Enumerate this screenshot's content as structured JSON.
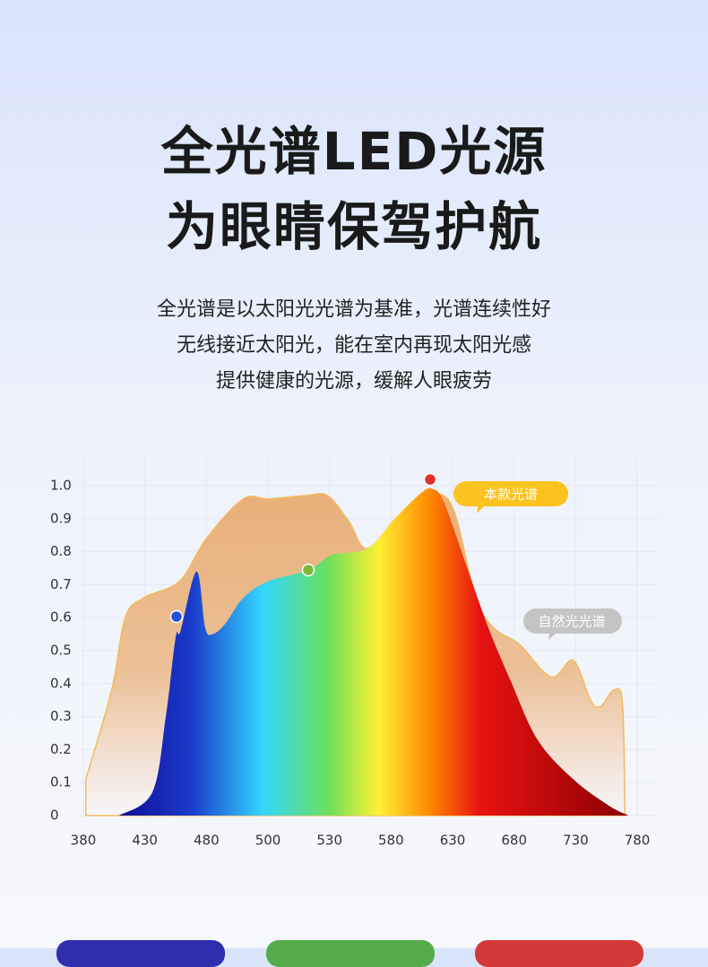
{
  "header": {
    "title": [
      "全光谱LED光源",
      "为眼睛保驾护航"
    ],
    "description": [
      "全光谱是以太阳光光谱为基准，光谱连续性好",
      "无线接近太阳光，能在室内再现太阳光感",
      "提供健康的光源，缓解人眼疲劳"
    ]
  },
  "chart_data": {
    "type": "area",
    "xlim": [
      380,
      780
    ],
    "xticks": [
      380,
      430,
      480,
      500,
      530,
      580,
      630,
      680,
      730,
      780
    ],
    "ylim": [
      0,
      1
    ],
    "yticks": [
      0,
      0.1,
      0.2,
      0.3,
      0.4,
      0.5,
      0.6,
      0.7,
      0.8,
      0.9,
      {
        "value": 1,
        "label": "1.0"
      }
    ],
    "grid": true,
    "series": [
      {
        "name": "自然光光谱",
        "x": [
          382,
          403,
          414,
          429,
          458,
          480,
          492,
          500,
          518,
          529,
          546,
          561,
          590,
          626,
          648,
          663,
          684,
          710,
          728,
          742,
          750,
          761,
          768,
          770
        ],
        "values": [
          0.11,
          0.38,
          0.6,
          0.66,
          0.71,
          0.84,
          0.96,
          0.96,
          0.97,
          0.97,
          0.89,
          0.81,
          0.92,
          0.96,
          0.67,
          0.57,
          0.52,
          0.42,
          0.47,
          0.35,
          0.33,
          0.38,
          0.34,
          0
        ]
      },
      {
        "name": "本款光谱",
        "x": [
          409,
          436,
          447,
          455,
          459,
          472,
          479,
          482,
          486,
          492,
          500,
          520,
          532,
          561,
          583,
          605,
          614,
          623,
          641,
          659,
          677,
          699,
          728,
          757,
          773
        ],
        "values": [
          0,
          0.07,
          0.3,
          0.54,
          0.56,
          0.74,
          0.57,
          0.55,
          0.58,
          0.66,
          0.71,
          0.745,
          0.79,
          0.81,
          0.9,
          0.98,
          0.99,
          0.95,
          0.76,
          0.57,
          0.41,
          0.23,
          0.11,
          0.03,
          0
        ]
      }
    ]
  }
}
